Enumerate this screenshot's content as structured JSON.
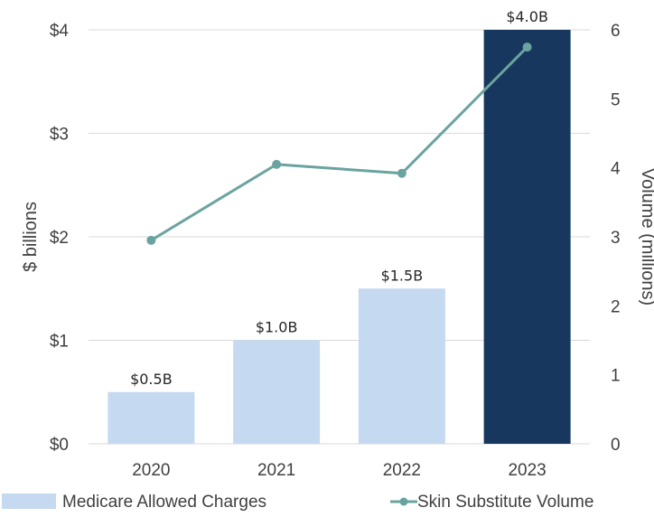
{
  "chart_data": {
    "type": "bar",
    "categories": [
      "2020",
      "2021",
      "2022",
      "2023"
    ],
    "series": [
      {
        "name": "Medicare Allowed Charges",
        "type": "bar",
        "axis": "left",
        "values": [
          0.5,
          1.0,
          1.5,
          4.0
        ],
        "labels": [
          "$0.5B",
          "$1.0B",
          "$1.5B",
          "$4.0B"
        ],
        "colors": [
          "#c5d9f1",
          "#c5d9f1",
          "#c5d9f1",
          "#17375e"
        ]
      },
      {
        "name": "Skin Substitute Volume",
        "type": "line",
        "axis": "right",
        "values": [
          2.95,
          4.05,
          3.92,
          5.75
        ],
        "color": "#6aa39f"
      }
    ],
    "ylabel": "$ billions",
    "y2label": "Volume (millions)",
    "ylim": [
      0,
      4
    ],
    "y2lim": [
      0,
      6
    ],
    "yticks": [
      "$0",
      "$1",
      "$2",
      "$3",
      "$4"
    ],
    "y2ticks": [
      "0",
      "1",
      "2",
      "3",
      "4",
      "5",
      "6"
    ],
    "grid": true,
    "legend_position": "bottom"
  }
}
